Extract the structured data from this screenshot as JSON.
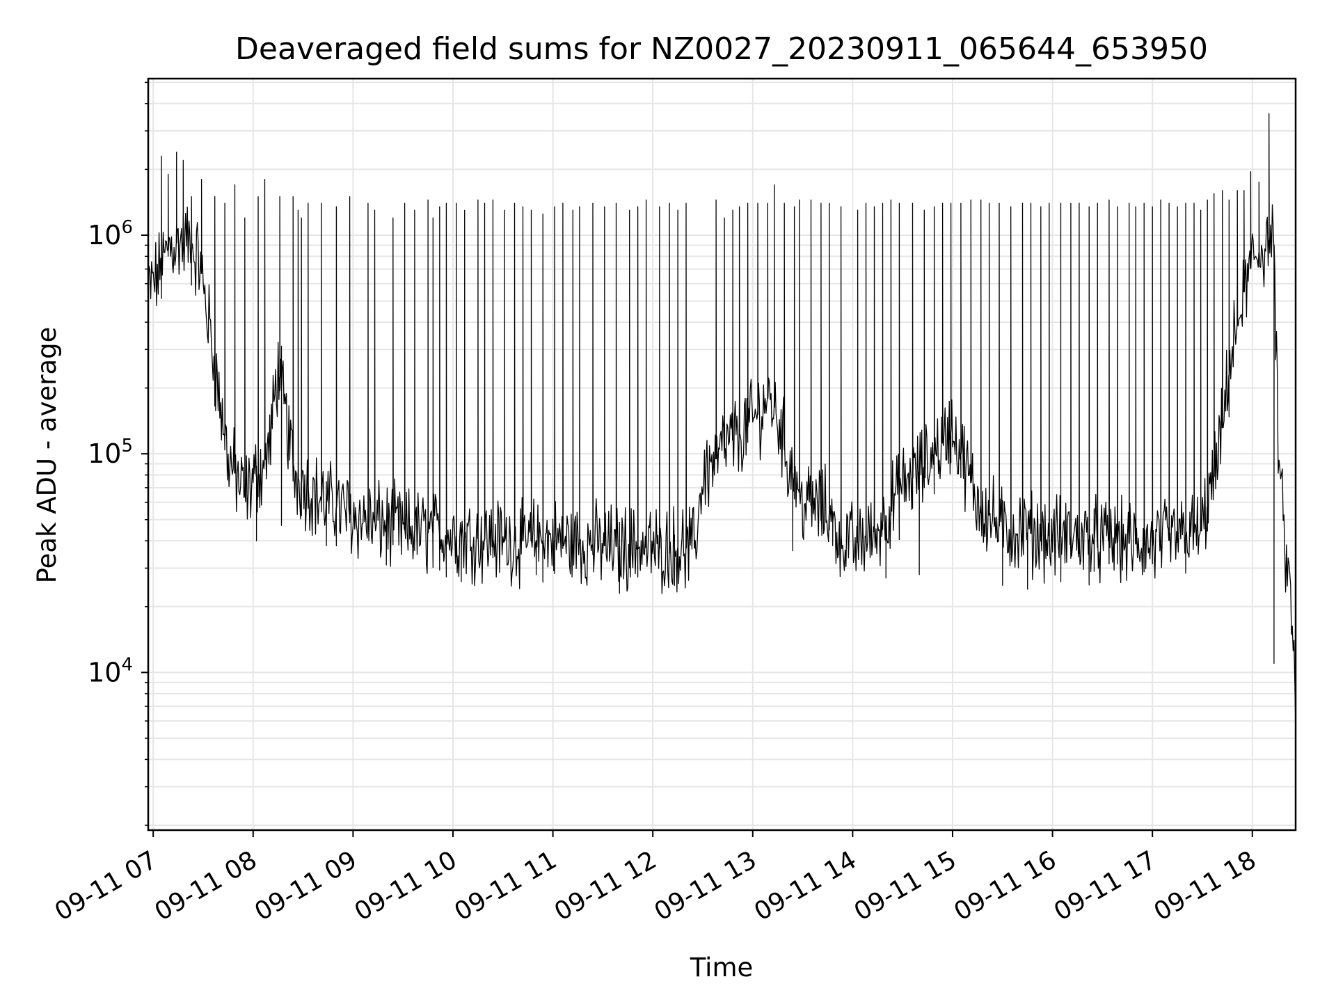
{
  "chart_data": {
    "type": "line",
    "title": "Deaveraged field sums for NZ0027_20230911_065644_653950",
    "xlabel": "Time",
    "ylabel": "Peak ADU - average",
    "yscale": "log",
    "ylim": [
      1900,
      5200000
    ],
    "xlim": [
      "09-11 06:57",
      "09-11 18:26"
    ],
    "grid": true,
    "line_color": "#000000",
    "grid_color": "#e6e6e6",
    "x_ticks": [
      "09-11 07",
      "09-11 08",
      "09-11 09",
      "09-11 10",
      "09-11 11",
      "09-11 12",
      "09-11 13",
      "09-11 14",
      "09-11 15",
      "09-11 16",
      "09-11 17",
      "09-11 18"
    ],
    "y_ticks": [
      {
        "value": 10000,
        "base": "10",
        "exp": "4"
      },
      {
        "value": 100000,
        "base": "10",
        "exp": "5"
      },
      {
        "value": 1000000,
        "base": "10",
        "exp": "6"
      }
    ],
    "series": [
      {
        "baseline": {
          "x": [
            "06:57",
            "07:05",
            "07:10",
            "07:20",
            "07:28",
            "07:33",
            "07:38",
            "07:45",
            "07:55",
            "08:00",
            "08:05",
            "08:10",
            "08:15",
            "08:25",
            "08:40",
            "09:00",
            "09:30",
            "10:00",
            "10:30",
            "11:00",
            "11:30",
            "12:00",
            "12:25",
            "12:30",
            "12:45",
            "13:00",
            "13:05",
            "13:10",
            "13:15",
            "13:20",
            "13:30",
            "13:45",
            "13:50",
            "14:00",
            "14:15",
            "14:30",
            "14:45",
            "15:00",
            "15:15",
            "15:30",
            "16:00",
            "16:30",
            "17:00",
            "17:30",
            "17:40",
            "17:48",
            "17:55",
            "18:00",
            "18:05",
            "18:10",
            "18:13",
            "18:15",
            "18:17",
            "18:19",
            "18:22",
            "18:24",
            "18:26"
          ],
          "y": [
            550000,
            700000,
            900000,
            950000,
            750000,
            420000,
            220000,
            95000,
            65000,
            75000,
            85000,
            110000,
            250000,
            80000,
            62000,
            52000,
            45000,
            42000,
            40000,
            40000,
            38000,
            37000,
            37000,
            80000,
            110000,
            140000,
            160000,
            185000,
            150000,
            100000,
            60000,
            55000,
            45000,
            38000,
            45000,
            70000,
            90000,
            130000,
            60000,
            45000,
            42000,
            40000,
            38000,
            45000,
            100000,
            300000,
            550000,
            750000,
            850000,
            950000,
            900000,
            150000,
            70000,
            40000,
            25000,
            18000,
            5500
          ]
        },
        "spikes": {
          "x": [
            "07:05",
            "07:09",
            "07:14",
            "07:18",
            "07:23",
            "07:29",
            "07:37",
            "07:43",
            "07:49",
            "07:55",
            "08:03",
            "08:07",
            "08:16",
            "08:24",
            "08:27",
            "08:29",
            "08:33",
            "08:41",
            "08:50",
            "08:58",
            "09:09",
            "09:13",
            "09:24",
            "09:31",
            "09:37",
            "09:45",
            "09:48",
            "09:52",
            "09:56",
            "10:02",
            "10:07",
            "10:15",
            "10:19",
            "10:24",
            "10:31",
            "10:37",
            "10:42",
            "10:47",
            "10:54",
            "11:01",
            "11:06",
            "11:12",
            "11:16",
            "11:24",
            "11:31",
            "11:38",
            "11:46",
            "11:51",
            "11:56",
            "12:04",
            "12:10",
            "12:15",
            "12:20",
            "12:38",
            "12:43",
            "12:48",
            "12:52",
            "12:57",
            "13:03",
            "13:09",
            "13:13",
            "13:19",
            "13:25",
            "13:28",
            "13:35",
            "13:41",
            "13:46",
            "13:53",
            "14:03",
            "14:08",
            "14:13",
            "14:18",
            "14:23",
            "14:28",
            "14:36",
            "14:43",
            "14:49",
            "14:54",
            "14:59",
            "15:05",
            "15:11",
            "15:17",
            "15:22",
            "15:28",
            "15:35",
            "15:42",
            "15:47",
            "15:53",
            "15:58",
            "16:05",
            "16:11",
            "16:16",
            "16:22",
            "16:27",
            "16:34",
            "16:39",
            "16:46",
            "16:50",
            "16:55",
            "17:00",
            "17:05",
            "17:10",
            "17:15",
            "17:20",
            "17:25",
            "17:29",
            "17:33",
            "17:37",
            "17:42",
            "17:46",
            "17:51",
            "17:55",
            "17:59",
            "18:04",
            "18:10"
          ],
          "y": [
            2300000,
            1900000,
            2400000,
            2200000,
            1500000,
            1800000,
            1500000,
            1400000,
            1700000,
            1200000,
            1500000,
            1800000,
            1500000,
            1500000,
            1300000,
            1200000,
            1400000,
            1400000,
            1350000,
            1500000,
            1400000,
            1300000,
            1200000,
            1400000,
            1300000,
            1450000,
            1200000,
            1350000,
            1400000,
            1400000,
            1300000,
            1450000,
            1400000,
            1450000,
            1300000,
            1400000,
            1350000,
            1300000,
            1250000,
            1350000,
            1400000,
            1300000,
            1350000,
            1400000,
            1350000,
            1400000,
            1300000,
            1350000,
            1450000,
            1350000,
            1400000,
            1300000,
            1400000,
            1450000,
            1200000,
            1300000,
            1350000,
            1400000,
            1400000,
            1400000,
            1700000,
            1400000,
            1350000,
            1450000,
            1450000,
            1400000,
            1400000,
            1350000,
            1300000,
            1400000,
            1350000,
            1400000,
            1450000,
            1400000,
            1400000,
            1300000,
            1350000,
            1400000,
            1400000,
            1400000,
            1450000,
            1450000,
            1400000,
            1400000,
            1350000,
            1400000,
            1400000,
            1350000,
            1400000,
            1400000,
            1400000,
            1400000,
            1350000,
            1400000,
            1450000,
            1350000,
            1400000,
            1350000,
            1400000,
            1350000,
            1450000,
            1400000,
            1350000,
            1400000,
            1400000,
            1300000,
            1450000,
            1550000,
            1600000,
            1450000,
            1600000,
            1600000,
            1950000,
            1750000,
            3600000
          ]
        },
        "dips": {
          "x": [
            "08:02",
            "08:17",
            "08:44",
            "09:20",
            "10:05",
            "10:50",
            "11:40",
            "12:13",
            "12:25",
            "13:24",
            "13:48",
            "14:20",
            "14:40",
            "15:30",
            "15:45",
            "16:05",
            "16:25",
            "18:13"
          ],
          "y": [
            40000,
            47000,
            38000,
            31000,
            26000,
            28000,
            23000,
            25000,
            37000,
            36000,
            38000,
            27000,
            28000,
            25000,
            24000,
            26000,
            29000,
            11000
          ]
        }
      }
    ]
  }
}
